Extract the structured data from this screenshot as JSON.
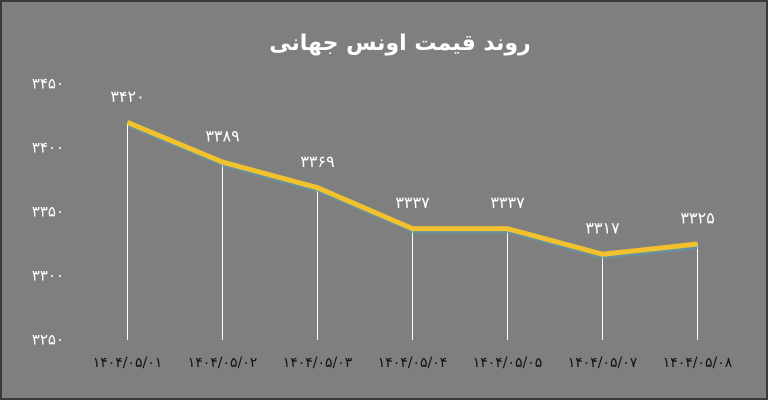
{
  "chart_data": {
    "type": "line",
    "title": "روند قیمت اونس جهانی",
    "categories": [
      "۱۴۰۴/۰۵/۰۱",
      "۱۴۰۴/۰۵/۰۲",
      "۱۴۰۴/۰۵/۰۳",
      "۱۴۰۴/۰۵/۰۴",
      "۱۴۰۴/۰۵/۰۵",
      "۱۴۰۴/۰۵/۰۷",
      "۱۴۰۴/۰۵/۰۸"
    ],
    "values": [
      3420,
      3389,
      3369,
      3337,
      3337,
      3317,
      3325
    ],
    "value_labels": [
      "۳۴۲۰",
      "۳۳۸۹",
      "۳۳۶۹",
      "۳۳۳۷",
      "۳۳۳۷",
      "۳۳۱۷",
      "۳۳۲۵"
    ],
    "color": "#f2c12e",
    "ylim": [
      3250,
      3450
    ],
    "yticks": [
      {
        "value": 3250,
        "label": "۳۲۵۰"
      },
      {
        "value": 3300,
        "label": "۳۳۰۰"
      },
      {
        "value": 3350,
        "label": "۳۳۵۰"
      },
      {
        "value": 3400,
        "label": "۳۴۰۰"
      },
      {
        "value": 3450,
        "label": "۳۴۵۰"
      }
    ],
    "drop_lines": true
  }
}
